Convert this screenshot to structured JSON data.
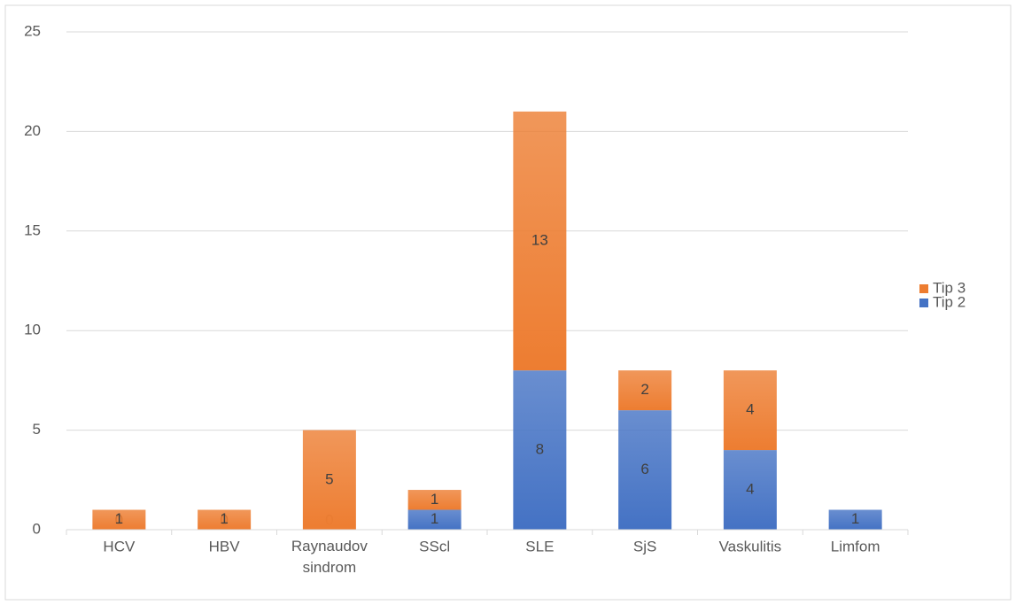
{
  "chart_data": {
    "type": "stacked_bar",
    "categories": [
      "HCV",
      "HBV",
      "Raynaudov sindrom",
      "SScl",
      "SLE",
      "SjS",
      "Vaskulitis",
      "Limfom"
    ],
    "series": [
      {
        "name": "Tip 2",
        "color": "#4472c4",
        "values": [
          0,
          0,
          0,
          1,
          8,
          6,
          4,
          1
        ]
      },
      {
        "name": "Tip 3",
        "color": "#ed7d31",
        "values": [
          1,
          1,
          5,
          1,
          13,
          2,
          4,
          null
        ]
      }
    ],
    "ylim": [
      0,
      25
    ],
    "yticks": [
      0,
      5,
      10,
      15,
      20,
      25
    ],
    "grid": true,
    "legend": "right"
  }
}
